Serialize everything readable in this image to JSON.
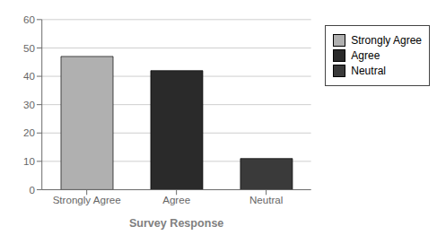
{
  "chart_data": {
    "type": "bar",
    "categories": [
      "Strongly Agree",
      "Agree",
      "Neutral"
    ],
    "values": [
      47,
      42,
      11
    ],
    "colors": [
      "#b0b0b0",
      "#2a2a2a",
      "#3a3a3a"
    ],
    "xlabel": "Survey Response",
    "ylim": [
      0,
      60
    ],
    "yticks": [
      0,
      10,
      20,
      30,
      40,
      50,
      60
    ],
    "grid": true,
    "legend": "right"
  }
}
